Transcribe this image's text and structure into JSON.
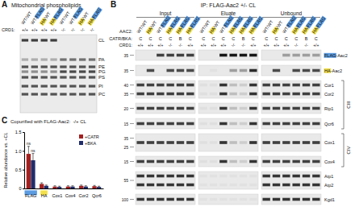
{
  "tags": [
    {
      "text": "FLAG",
      "color": "#5b9be0"
    },
    {
      "text": "HA",
      "color": "#f3e04b"
    }
  ],
  "panel_a": {
    "label": "A",
    "title": "Mitochondrial phospholipids",
    "crd1_label": "CRD1:",
    "lanes": [
      "WT/WT",
      "WT/FLAG",
      "HA/WT",
      "HA/FLAG",
      "WT/WT",
      "WT/FLAG",
      "HA/WT",
      "HA/FLAG"
    ],
    "crd1": [
      "+/+",
      "+/+",
      "+/+",
      "+/+",
      "-/-",
      "-/-",
      "-/-",
      "-/-"
    ],
    "bands": [
      "CL",
      "PA",
      "PE",
      "PG",
      "PS",
      "PI",
      "PC"
    ]
  },
  "panel_b": {
    "label": "B",
    "title": "IP: FLAG-Aac2 +/- CL",
    "row_labels": [
      "AAC2:",
      "CATR/BKA:",
      "CRD1:"
    ],
    "groups": [
      {
        "name": "Input",
        "aac2": [
          "WT/WT",
          "HA/WT",
          "WT/FLAG",
          "HA/FLAG",
          "HA/FLAG",
          "HA/FLAG"
        ],
        "catr_bka": [
          "C",
          "C",
          "C",
          "C",
          "B",
          "C"
        ],
        "crd1": [
          "+/+",
          "+/+",
          "+/+",
          "-/-",
          "-/-",
          "+/+"
        ]
      },
      {
        "name": "Eluate",
        "aac2": [
          "WT/WT",
          "HA/WT",
          "WT/FLAG",
          "HA/FLAG",
          "HA/FLAG",
          "HA/FLAG"
        ],
        "catr_bka": [
          "C",
          "C",
          "C",
          "C",
          "B",
          "C"
        ],
        "crd1": [
          "+/+",
          "+/+",
          "+/+",
          "-/-",
          "-/-",
          "+/+"
        ]
      },
      {
        "name": "Unbound",
        "aac2": [
          "WT/WT",
          "HA/WT",
          "WT/FLAG",
          "HA/FLAG",
          "HA/FLAG",
          "HA/FLAG"
        ],
        "catr_bka": [
          "C",
          "C",
          "C",
          "C",
          "B",
          "C"
        ],
        "crd1": [
          "+/+",
          "+/+",
          "+/+",
          "-/-",
          "-/-",
          "+/+"
        ]
      }
    ],
    "blot_groups": [
      {
        "blots": [
          {
            "names": [
              "FLAG-Aac2"
            ],
            "mw": [
              35
            ]
          }
        ]
      },
      {
        "blots": [
          {
            "names": [
              "HA-Aac2"
            ],
            "mw": [
              35
            ]
          }
        ]
      },
      {
        "complex": "CIII",
        "blots": [
          {
            "names": [
              "Cor1",
              "Cor2"
            ],
            "mw": [
              40,
              35
            ]
          },
          {
            "names": [
              "Rip1"
            ],
            "mw": [
              20
            ]
          },
          {
            "names": [
              "Qcr6"
            ],
            "mw": [
              15
            ]
          }
        ]
      },
      {
        "complex": "CIV",
        "blots": [
          {
            "names": [
              "Cox1"
            ],
            "mw": [
              35,
              25
            ]
          },
          {
            "names": [
              "Cox4"
            ],
            "mw": [
              15
            ]
          }
        ]
      },
      {
        "blots": [
          {
            "names": [
              "Atp1",
              "Atp2"
            ],
            "mw": [
              55
            ]
          },
          {
            "names": [
              "Kgd1"
            ],
            "mw": [
              100
            ]
          }
        ]
      }
    ]
  },
  "chart_data": {
    "type": "bar",
    "label": "C",
    "title": "Copurified with FLAG-Aac2:",
    "subtitle": "-/+ CL",
    "y_label": "Relative abundance vs. +CL",
    "categories": [
      "FLAG",
      "HA",
      "Cox1",
      "Cox4",
      "Cor2",
      "Qcr6"
    ],
    "series": [
      {
        "name": "+CATR",
        "color": "#a3201f",
        "values": [
          0.92,
          0.12,
          0.05,
          0.05,
          0.07,
          0.06
        ],
        "errors": [
          0.2,
          0.03,
          0.02,
          0.02,
          0.02,
          0.02
        ],
        "annotations": [
          "ns",
          null,
          null,
          null,
          null,
          null
        ]
      },
      {
        "name": "+BKA",
        "color": "#1f2d6b",
        "values": [
          0.75,
          0.07,
          0.04,
          0.05,
          0.05,
          0.04
        ],
        "errors": [
          0.18,
          0.02,
          0.02,
          0.02,
          0.02,
          0.02
        ],
        "annotations": [
          "ns",
          null,
          null,
          null,
          null,
          null
        ]
      }
    ],
    "ylim": [
      0,
      1.5
    ],
    "yticks": [
      0,
      0.5,
      {
        "value": 1,
        "label": "1.0"
      },
      1.5
    ],
    "legend": "top-right"
  }
}
